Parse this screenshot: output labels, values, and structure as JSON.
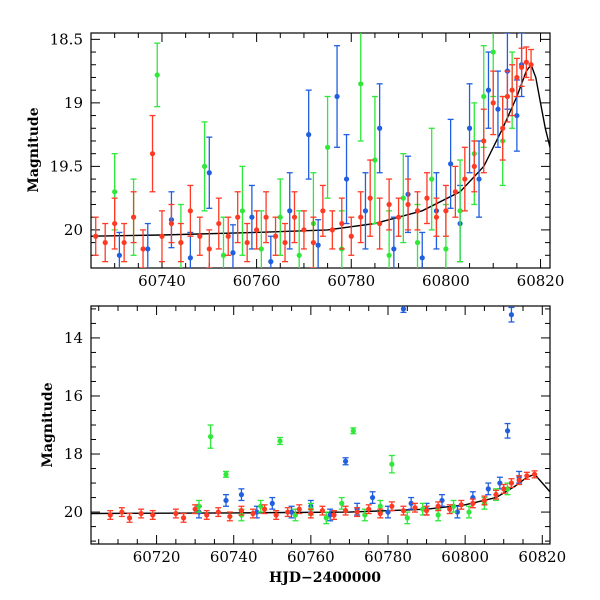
{
  "chart_data": [
    {
      "type": "scatter",
      "title": "",
      "xlabel": "",
      "ylabel": "Magnitude",
      "xlim": [
        60725,
        60822
      ],
      "ylim": [
        20.3,
        18.45
      ],
      "y_inverted": true,
      "x_ticks": [
        60740,
        60760,
        60780,
        60800,
        60820
      ],
      "y_ticks": [
        18.5,
        19,
        19.5,
        20
      ],
      "y_tick_labels": [
        "18.5",
        "19",
        "19.5",
        "20"
      ],
      "series": [
        {
          "color": "#1f5fe0",
          "points": [
            [
              60731,
              20.2,
              0.18
            ],
            [
              60737,
              20.15,
              0.2
            ],
            [
              60742,
              19.92,
              0.22
            ],
            [
              60746,
              20.22,
              0.2
            ],
            [
              60750,
              19.55,
              0.28
            ],
            [
              60755,
              20.18,
              0.22
            ],
            [
              60759,
              19.9,
              0.25
            ],
            [
              60763,
              20.25,
              0.2
            ],
            [
              60767,
              19.85,
              0.3
            ],
            [
              60771,
              19.25,
              0.35
            ],
            [
              60773,
              20.12,
              0.2
            ],
            [
              60777,
              18.95,
              0.4
            ],
            [
              60779,
              19.6,
              0.35
            ],
            [
              60783,
              19.85,
              0.3
            ],
            [
              60786,
              19.2,
              0.35
            ],
            [
              60789,
              20.15,
              0.25
            ],
            [
              60792,
              19.72,
              0.3
            ],
            [
              60795,
              20.22,
              0.2
            ],
            [
              60798,
              19.85,
              0.3
            ],
            [
              60801,
              19.48,
              0.35
            ],
            [
              60803,
              19.95,
              0.3
            ],
            [
              60805,
              19.2,
              0.35
            ],
            [
              60807,
              19.6,
              0.3
            ],
            [
              60809,
              18.9,
              0.3
            ],
            [
              60811,
              19.05,
              0.3
            ],
            [
              60813,
              18.75,
              0.3
            ],
            [
              60815,
              19.1,
              0.28
            ],
            [
              60816,
              18.7,
              0.25
            ]
          ]
        },
        {
          "color": "#2fe83a",
          "points": [
            [
              60730,
              19.7,
              0.3
            ],
            [
              60734,
              19.9,
              0.3
            ],
            [
              60739,
              18.78,
              0.25
            ],
            [
              60744,
              20.1,
              0.3
            ],
            [
              60749,
              19.5,
              0.35
            ],
            [
              60753,
              20.2,
              0.3
            ],
            [
              60757,
              19.85,
              0.35
            ],
            [
              60761,
              20.15,
              0.3
            ],
            [
              60765,
              19.9,
              0.3
            ],
            [
              60769,
              20.2,
              0.35
            ],
            [
              60772,
              19.95,
              0.4
            ],
            [
              60775,
              19.35,
              0.4
            ],
            [
              60778,
              20.15,
              0.3
            ],
            [
              60782,
              18.85,
              0.45
            ],
            [
              60785,
              19.45,
              0.5
            ],
            [
              60788,
              20.2,
              0.35
            ],
            [
              60791,
              19.75,
              0.35
            ],
            [
              60794,
              20.1,
              0.3
            ],
            [
              60797,
              19.6,
              0.4
            ],
            [
              60800,
              20.15,
              0.35
            ],
            [
              60803,
              19.85,
              0.4
            ],
            [
              60806,
              19.4,
              0.4
            ],
            [
              60808,
              18.95,
              0.4
            ],
            [
              60810,
              18.6,
              0.35
            ],
            [
              60812,
              19.3,
              0.35
            ],
            [
              60814,
              18.9,
              0.3
            ]
          ]
        },
        {
          "color": "#ff3a24",
          "points": [
            [
              60726,
              20.05,
              0.15
            ],
            [
              60728,
              20.1,
              0.15
            ],
            [
              60730,
              19.95,
              0.2
            ],
            [
              60732,
              20.1,
              0.15
            ],
            [
              60734,
              19.9,
              0.2
            ],
            [
              60736,
              20.15,
              0.15
            ],
            [
              60738,
              19.4,
              0.3
            ],
            [
              60740,
              20.05,
              0.2
            ],
            [
              60742,
              19.95,
              0.15
            ],
            [
              60744,
              20.1,
              0.15
            ],
            [
              60746,
              19.85,
              0.2
            ],
            [
              60748,
              20.05,
              0.15
            ],
            [
              60750,
              20.15,
              0.15
            ],
            [
              60752,
              19.95,
              0.2
            ],
            [
              60754,
              20.05,
              0.15
            ],
            [
              60756,
              19.9,
              0.2
            ],
            [
              60758,
              20.1,
              0.15
            ],
            [
              60760,
              20.0,
              0.15
            ],
            [
              60762,
              19.9,
              0.2
            ],
            [
              60764,
              20.05,
              0.15
            ],
            [
              60766,
              20.1,
              0.15
            ],
            [
              60768,
              19.9,
              0.2
            ],
            [
              60770,
              20.0,
              0.15
            ],
            [
              60772,
              20.1,
              0.2
            ],
            [
              60774,
              19.85,
              0.2
            ],
            [
              60776,
              20.0,
              0.15
            ],
            [
              60778,
              19.95,
              0.2
            ],
            [
              60780,
              20.05,
              0.15
            ],
            [
              60782,
              19.9,
              0.2
            ],
            [
              60784,
              19.75,
              0.3
            ],
            [
              60786,
              19.95,
              0.2
            ],
            [
              60788,
              19.8,
              0.2
            ],
            [
              60790,
              19.9,
              0.15
            ],
            [
              60792,
              19.8,
              0.2
            ],
            [
              60794,
              19.85,
              0.15
            ],
            [
              60796,
              19.75,
              0.2
            ],
            [
              60798,
              19.9,
              0.15
            ],
            [
              60800,
              19.85,
              0.2
            ],
            [
              60802,
              19.7,
              0.2
            ],
            [
              60804,
              19.6,
              0.25
            ],
            [
              60806,
              19.5,
              0.2
            ],
            [
              60808,
              19.3,
              0.25
            ],
            [
              60810,
              19.0,
              0.25
            ],
            [
              60812,
              19.2,
              0.25
            ],
            [
              60813,
              18.95,
              0.2
            ],
            [
              60814,
              18.9,
              0.2
            ],
            [
              60815,
              18.8,
              0.15
            ],
            [
              60816,
              18.72,
              0.15
            ],
            [
              60817,
              18.68,
              0.12
            ],
            [
              60818,
              18.7,
              0.12
            ]
          ]
        }
      ],
      "model_curve": [
        [
          60725,
          20.05
        ],
        [
          60740,
          20.04
        ],
        [
          60760,
          20.02
        ],
        [
          60775,
          20.0
        ],
        [
          60785,
          19.95
        ],
        [
          60795,
          19.85
        ],
        [
          60803,
          19.7
        ],
        [
          60808,
          19.5
        ],
        [
          60812,
          19.2
        ],
        [
          60815,
          18.95
        ],
        [
          60817,
          18.75
        ],
        [
          60818,
          18.7
        ],
        [
          60819,
          18.8
        ],
        [
          60820,
          19.0
        ],
        [
          60821,
          19.2
        ],
        [
          60822,
          19.35
        ]
      ]
    },
    {
      "type": "scatter",
      "title": "",
      "xlabel": "HJD−2400000",
      "ylabel": "Magnitude",
      "xlim": [
        60703,
        60822
      ],
      "ylim": [
        21.1,
        12.9
      ],
      "y_inverted": true,
      "x_ticks": [
        60720,
        60740,
        60760,
        60780,
        60800,
        60820
      ],
      "y_ticks": [
        14,
        16,
        18,
        20
      ],
      "y_tick_labels": [
        "14",
        "16",
        "18",
        "20"
      ],
      "series": [
        {
          "color": "#1f5fe0",
          "points": [
            [
              60731,
              20.0,
              0.2
            ],
            [
              60738,
              19.6,
              0.2
            ],
            [
              60742,
              19.4,
              0.2
            ],
            [
              60746,
              20.0,
              0.2
            ],
            [
              60750,
              19.7,
              0.2
            ],
            [
              60755,
              20.0,
              0.2
            ],
            [
              60760,
              19.8,
              0.2
            ],
            [
              60765,
              20.1,
              0.2
            ],
            [
              60769,
              18.25,
              0.12
            ],
            [
              60772,
              19.9,
              0.2
            ],
            [
              60776,
              19.5,
              0.2
            ],
            [
              60780,
              20.0,
              0.2
            ],
            [
              60784,
              13.0,
              0.12
            ],
            [
              60786,
              19.7,
              0.2
            ],
            [
              60790,
              19.9,
              0.2
            ],
            [
              60794,
              19.6,
              0.2
            ],
            [
              60798,
              20.0,
              0.2
            ],
            [
              60802,
              19.5,
              0.2
            ],
            [
              60806,
              19.2,
              0.2
            ],
            [
              60809,
              19.0,
              0.2
            ],
            [
              60811,
              17.2,
              0.25
            ],
            [
              60812,
              13.2,
              0.25
            ],
            [
              60814,
              18.8,
              0.2
            ]
          ]
        },
        {
          "color": "#2fe83a",
          "points": [
            [
              60731,
              19.8,
              0.2
            ],
            [
              60734,
              17.4,
              0.4
            ],
            [
              60738,
              18.7,
              0.1
            ],
            [
              60742,
              20.1,
              0.2
            ],
            [
              60747,
              19.8,
              0.2
            ],
            [
              60752,
              17.55,
              0.12
            ],
            [
              60756,
              20.1,
              0.2
            ],
            [
              60760,
              19.9,
              0.2
            ],
            [
              60764,
              20.2,
              0.2
            ],
            [
              60768,
              19.7,
              0.2
            ],
            [
              60771,
              17.2,
              0.1
            ],
            [
              60774,
              20.1,
              0.2
            ],
            [
              60778,
              19.8,
              0.2
            ],
            [
              60781,
              18.35,
              0.3
            ],
            [
              60785,
              20.2,
              0.2
            ],
            [
              60789,
              19.9,
              0.2
            ],
            [
              60793,
              20.1,
              0.2
            ],
            [
              60797,
              19.8,
              0.2
            ],
            [
              60801,
              20.0,
              0.2
            ],
            [
              60805,
              19.7,
              0.2
            ],
            [
              60808,
              19.4,
              0.2
            ],
            [
              60811,
              19.2,
              0.2
            ]
          ]
        },
        {
          "color": "#ff3a24",
          "points": [
            [
              60708,
              20.1,
              0.15
            ],
            [
              60711,
              20.0,
              0.15
            ],
            [
              60713,
              20.2,
              0.15
            ],
            [
              60716,
              20.05,
              0.15
            ],
            [
              60719,
              20.1,
              0.15
            ],
            [
              60725,
              20.05,
              0.15
            ],
            [
              60727,
              20.2,
              0.15
            ],
            [
              60730,
              19.9,
              0.15
            ],
            [
              60733,
              20.1,
              0.15
            ],
            [
              60736,
              20.0,
              0.15
            ],
            [
              60739,
              20.15,
              0.15
            ],
            [
              60742,
              19.95,
              0.15
            ],
            [
              60745,
              20.05,
              0.15
            ],
            [
              60748,
              19.9,
              0.15
            ],
            [
              60751,
              20.1,
              0.15
            ],
            [
              60754,
              20.0,
              0.15
            ],
            [
              60757,
              19.9,
              0.15
            ],
            [
              60760,
              20.05,
              0.15
            ],
            [
              60763,
              19.95,
              0.15
            ],
            [
              60766,
              20.1,
              0.15
            ],
            [
              60769,
              19.95,
              0.15
            ],
            [
              60772,
              20.0,
              0.15
            ],
            [
              60775,
              19.9,
              0.15
            ],
            [
              60778,
              20.05,
              0.15
            ],
            [
              60781,
              19.8,
              0.15
            ],
            [
              60784,
              19.95,
              0.15
            ],
            [
              60787,
              19.85,
              0.15
            ],
            [
              60790,
              19.95,
              0.15
            ],
            [
              60793,
              19.8,
              0.15
            ],
            [
              60796,
              19.9,
              0.15
            ],
            [
              60799,
              19.75,
              0.15
            ],
            [
              60802,
              19.7,
              0.15
            ],
            [
              60805,
              19.6,
              0.15
            ],
            [
              60808,
              19.4,
              0.15
            ],
            [
              60810,
              19.2,
              0.15
            ],
            [
              60812,
              19.0,
              0.15
            ],
            [
              60814,
              18.9,
              0.15
            ],
            [
              60816,
              18.75,
              0.12
            ],
            [
              60818,
              18.7,
              0.12
            ]
          ]
        }
      ],
      "model_curve": [
        [
          60703,
          20.05
        ],
        [
          60740,
          20.03
        ],
        [
          60770,
          20.0
        ],
        [
          60790,
          19.9
        ],
        [
          60800,
          19.75
        ],
        [
          60808,
          19.5
        ],
        [
          60813,
          19.1
        ],
        [
          60816,
          18.8
        ],
        [
          60818,
          18.7
        ],
        [
          60820,
          19.0
        ],
        [
          60822,
          19.3
        ]
      ]
    }
  ]
}
